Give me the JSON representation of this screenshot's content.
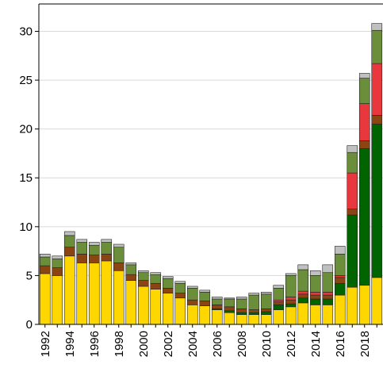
{
  "chart_data": {
    "type": "stacked_bar",
    "categories": [
      "1992",
      null,
      "1994",
      null,
      "1996",
      null,
      "1998",
      null,
      "2000",
      null,
      "2002",
      null,
      "2004",
      null,
      "2006",
      null,
      "2008",
      null,
      "2010",
      null,
      "2012",
      null,
      "2014",
      null,
      "2016",
      null,
      "2018",
      null
    ],
    "series": [
      {
        "color": "#ffd700",
        "values": [
          5.2,
          5.0,
          7.0,
          6.3,
          6.3,
          6.5,
          5.5,
          4.5,
          3.9,
          3.6,
          3.2,
          2.7,
          2.0,
          1.9,
          1.5,
          1.2,
          1.0,
          1.0,
          1.0,
          1.5,
          1.8,
          2.2,
          2.0,
          2.0,
          3.0,
          3.8,
          4.0,
          4.8
        ]
      },
      {
        "color": "#006400",
        "values": [
          0,
          0,
          0,
          0,
          0,
          0,
          0,
          0,
          0,
          0,
          0,
          0,
          0,
          0,
          0.1,
          0.2,
          0.2,
          0.2,
          0.3,
          0.5,
          0.3,
          0.5,
          0.6,
          0.6,
          1.2,
          7.4,
          14.0,
          15.7
        ]
      },
      {
        "color": "#8b4513",
        "values": [
          0.8,
          0.8,
          0.9,
          0.9,
          0.8,
          0.7,
          0.8,
          0.6,
          0.6,
          0.6,
          0.5,
          0.5,
          0.5,
          0.5,
          0.4,
          0.4,
          0.4,
          0.3,
          0.3,
          0.3,
          0.4,
          0.4,
          0.4,
          0.4,
          0.6,
          0.6,
          0.8,
          0.9
        ]
      },
      {
        "color": "#e8383d",
        "values": [
          0,
          0,
          0,
          0,
          0,
          0,
          0,
          0,
          0,
          0,
          0,
          0,
          0,
          0,
          0,
          0,
          0,
          0,
          0,
          0.2,
          0.3,
          0.3,
          0.3,
          0.3,
          0.2,
          3.7,
          3.8,
          5.3
        ]
      },
      {
        "color": "#6b8e3a",
        "values": [
          0.9,
          0.9,
          1.2,
          1.2,
          1.0,
          1.2,
          1.6,
          1.0,
          0.8,
          0.9,
          1.0,
          1.0,
          1.2,
          0.9,
          0.6,
          0.8,
          1.0,
          1.5,
          1.5,
          1.2,
          2.2,
          2.2,
          1.7,
          2.0,
          2.2,
          2.1,
          2.6,
          3.4
        ]
      },
      {
        "color": "#c0c0c0",
        "values": [
          0.3,
          0.3,
          0.4,
          0.3,
          0.3,
          0.3,
          0.3,
          0.2,
          0.2,
          0.2,
          0.2,
          0.2,
          0.2,
          0.2,
          0.2,
          0.1,
          0.2,
          0.2,
          0.2,
          0.3,
          0.2,
          0.5,
          0.5,
          0.8,
          0.8,
          0.7,
          0.5,
          0.7
        ]
      }
    ],
    "ylim": [
      0,
      32.8
    ],
    "yticks": [
      0,
      5,
      10,
      15,
      20,
      25,
      30
    ],
    "grid": true
  }
}
